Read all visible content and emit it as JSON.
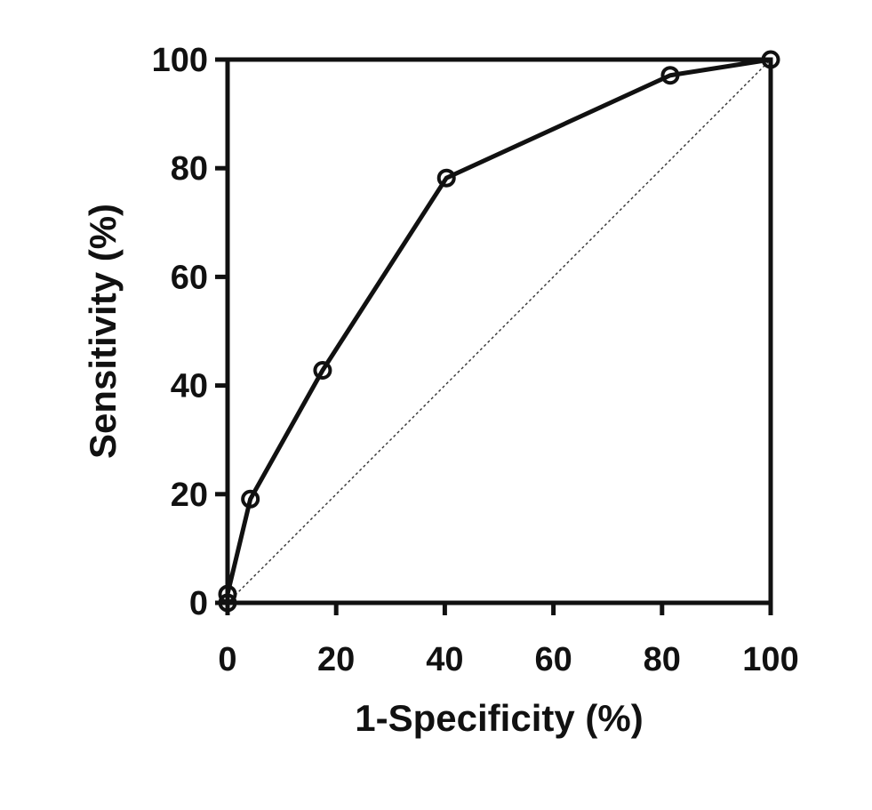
{
  "chart_data": {
    "type": "line",
    "title": "",
    "xlabel": "1-Specificity (%)",
    "ylabel": "Sensitivity (%)",
    "xlim": [
      0,
      100
    ],
    "ylim": [
      0,
      100
    ],
    "xticks": [
      "0",
      "20",
      "40",
      "60",
      "80",
      "100"
    ],
    "yticks": [
      "0",
      "20",
      "40",
      "60",
      "80",
      "100"
    ],
    "grid": false,
    "legend": "none",
    "series": [
      {
        "x": [
          0,
          0,
          4.2,
          17.5,
          40.3,
          81.5,
          100
        ],
        "y": [
          0,
          1.6,
          19.1,
          42.8,
          78.2,
          97.1,
          100
        ],
        "marker": "open-circle",
        "color": "#111111"
      }
    ],
    "reference_line": {
      "x": [
        0,
        100
      ],
      "y": [
        0,
        100
      ],
      "style": "dashed",
      "color": "#333333"
    }
  }
}
